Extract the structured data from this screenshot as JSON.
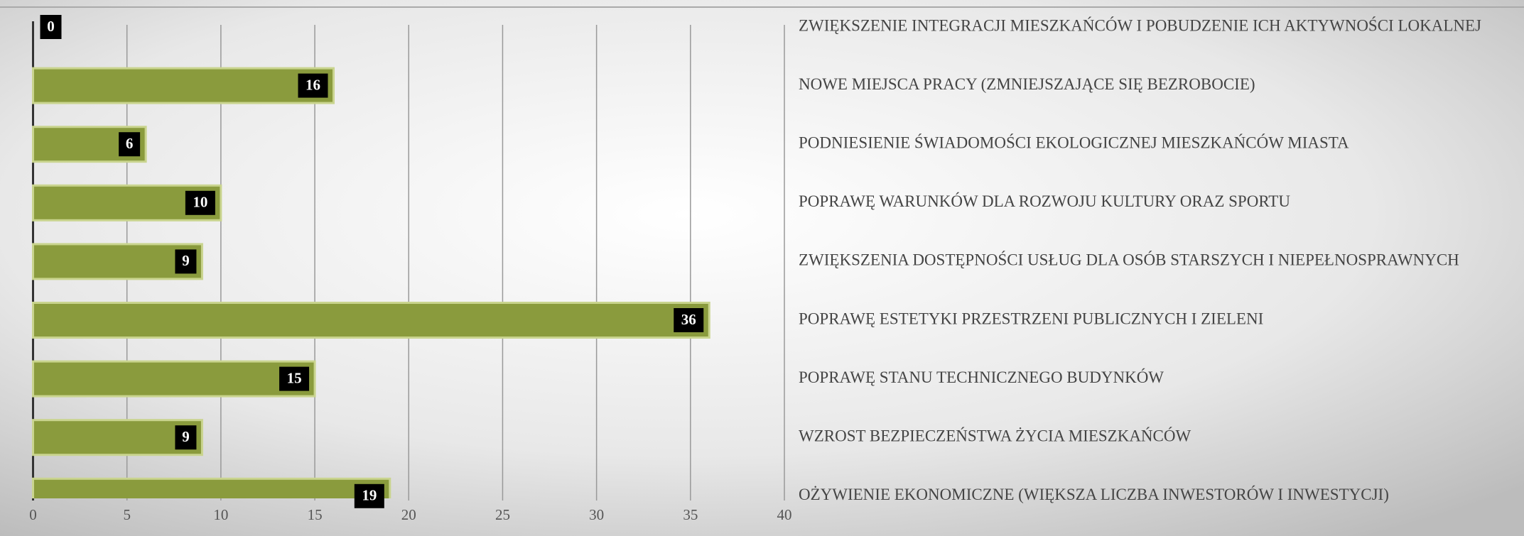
{
  "chart_data": {
    "type": "bar",
    "orientation": "horizontal",
    "categories": [
      "ZWIĘKSZENIE INTEGRACJI MIESZKAŃCÓW I POBUDZENIE ICH AKTYWNOŚCI LOKALNEJ",
      "NOWE MIEJSCA PRACY (ZMNIEJSZAJĄCE SIĘ BEZROBOCIE)",
      "PODNIESIENIE ŚWIADOMOŚCI EKOLOGICZNEJ MIESZKAŃCÓW MIASTA",
      "POPRAWĘ WARUNKÓW DLA ROZWOJU KULTURY ORAZ SPORTU",
      "ZWIĘKSZENIA DOSTĘPNOŚCI USŁUG DLA OSÓB STARSZYCH I NIEPEŁNOSPRAWNYCH",
      "POPRAWĘ ESTETYKI  PRZESTRZENI PUBLICZNYCH I ZIELENI",
      "POPRAWĘ STANU TECHNICZNEGO BUDYNKÓW",
      "WZROST BEZPIECZEŃSTWA ŻYCIA MIESZKAŃCÓW",
      "OŻYWIENIE EKONOMICZNE (WIĘKSZA LICZBA INWESTORÓW I INWESTYCJI)"
    ],
    "values": [
      0,
      16,
      6,
      10,
      9,
      36,
      15,
      9,
      19
    ],
    "color": "#8a9b3d",
    "xlim": [
      0,
      40
    ],
    "xticks": [
      0,
      5,
      10,
      15,
      20,
      25,
      30,
      35,
      40
    ],
    "grid": true
  }
}
